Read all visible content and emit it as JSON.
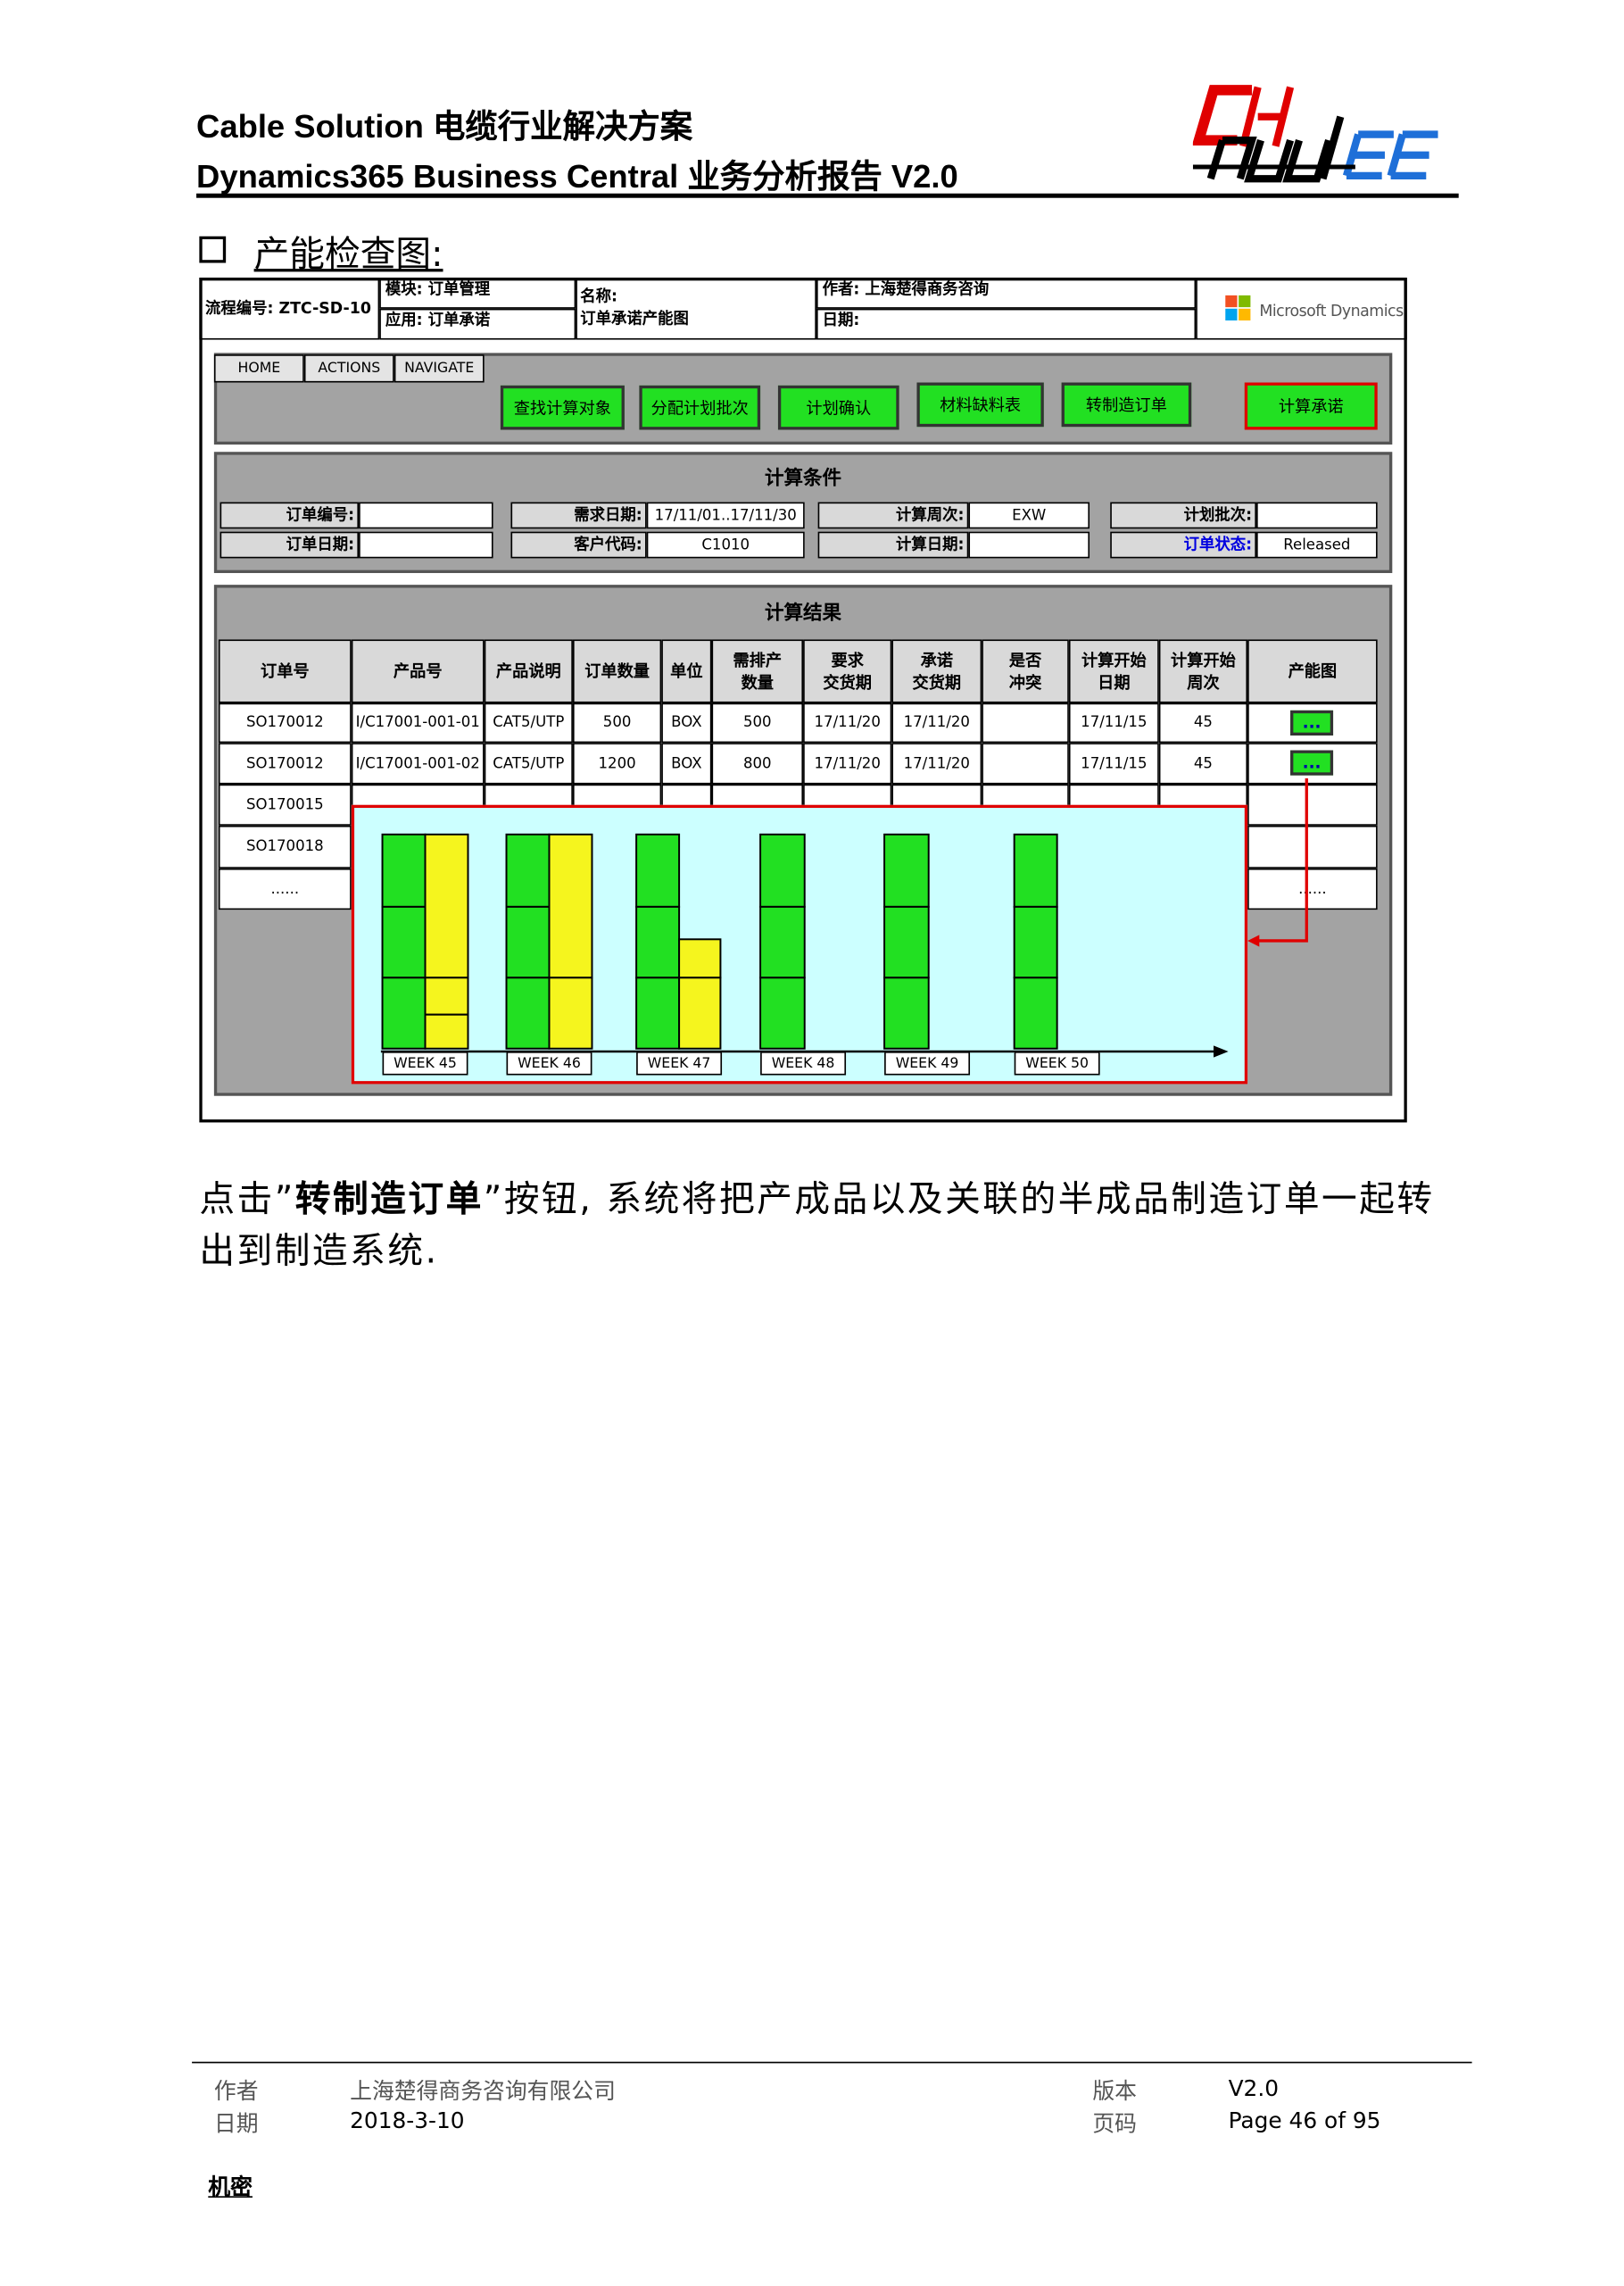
{
  "header": {
    "line1": "Cable Solution 电缆行业解决方案",
    "line2": "Dynamics365 Business Central 业务分析报告 V2.0"
  },
  "section_title": "产能检查图:",
  "mockup": {
    "info": {
      "process_no": "流程编号: ZTC-SD-10",
      "module": "模块: 订单管理",
      "app": "应用: 订单承诺",
      "name_label": "名称:",
      "name": "订单承诺产能图",
      "author": "作者: 上海楚得商务咨询",
      "date": "日期:",
      "logo": "Microsoft Dynamics"
    },
    "tabs": [
      "HOME",
      "ACTIONS",
      "NAVIGATE"
    ],
    "buttons": [
      "查找计算对象",
      "分配计划批次",
      "计划确认",
      "材料缺料表",
      "转制造订单",
      "计算承诺"
    ],
    "conditions": {
      "title": "计算条件",
      "fields": [
        {
          "label": "订单编号:"
        },
        {
          "label": "需求日期:",
          "value": "17/11/01..17/11/30"
        },
        {
          "label": "计算周次:",
          "value": "EXW"
        },
        {
          "label": "计划批次:"
        },
        {
          "label": "订单日期:"
        },
        {
          "label": "客户代码:",
          "value": "C1010"
        },
        {
          "label": "计算日期:"
        },
        {
          "label": "订单状态:",
          "value": "Released"
        }
      ]
    },
    "results": {
      "title": "计算结果",
      "headers": [
        "订单号",
        "产品号",
        "产品说明",
        "订单数量",
        "单位",
        "需排产\n数量",
        "要求\n交货期",
        "承诺\n交货期",
        "是否\n冲突",
        "计算开始\n日期",
        "计算开始\n周次",
        "产能图"
      ],
      "rows": [
        [
          "SO170012",
          "I/C17001-001-01",
          "CAT5/UTP",
          "500",
          "BOX",
          "500",
          "17/11/20",
          "17/11/20",
          null,
          "17/11/15",
          "45",
          "..."
        ],
        [
          "SO170012",
          "I/C17001-001-02",
          "CAT5/UTP",
          "1200",
          "BOX",
          "800",
          "17/11/20",
          "17/11/20",
          null,
          "17/11/15",
          "45",
          "..."
        ],
        [
          "SO170015"
        ],
        [
          "SO170018"
        ],
        [
          "......",
          null,
          null,
          null,
          null,
          null,
          null,
          null,
          null,
          null,
          null,
          "......"
        ]
      ]
    },
    "popup": {
      "weeks": [
        "WEEK 45",
        "WEEK 46",
        "WEEK 47",
        "WEEK 48",
        "WEEK 49",
        "WEEK 50"
      ]
    }
  },
  "paragraph": {
    "parts": [
      "点击”",
      "转制造订单",
      "”按钮, 系统将把产成品以及关联的半成品制造订单一起转出到制造系统."
    ]
  },
  "footer": {
    "author_label": "作者",
    "author": "上海楚得商务咨询有限公司",
    "version_label": "版本",
    "version": "V2.0",
    "date_label": "日期",
    "date": "2018-3-10",
    "page_label": "页码",
    "page": "Page 46 of 95",
    "confidential": "机密"
  }
}
